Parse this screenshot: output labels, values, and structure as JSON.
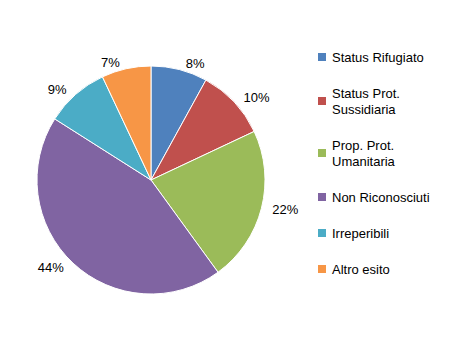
{
  "chart_data": {
    "type": "pie",
    "categories": [
      "Status Rifugiato",
      "Status Prot. Sussidiaria",
      "Prop. Prot. Umanitaria",
      "Non Riconosciuti",
      "Irreperibili",
      "Altro esito"
    ],
    "values": [
      8,
      10,
      22,
      44,
      9,
      7
    ],
    "value_labels": [
      "8%",
      "10%",
      "22%",
      "44%",
      "9%",
      "7%"
    ],
    "colors": [
      "#4f81bd",
      "#c0504d",
      "#9bbb59",
      "#8064a2",
      "#4bacc6",
      "#f79646"
    ],
    "data_labels": true,
    "legend": "right"
  }
}
